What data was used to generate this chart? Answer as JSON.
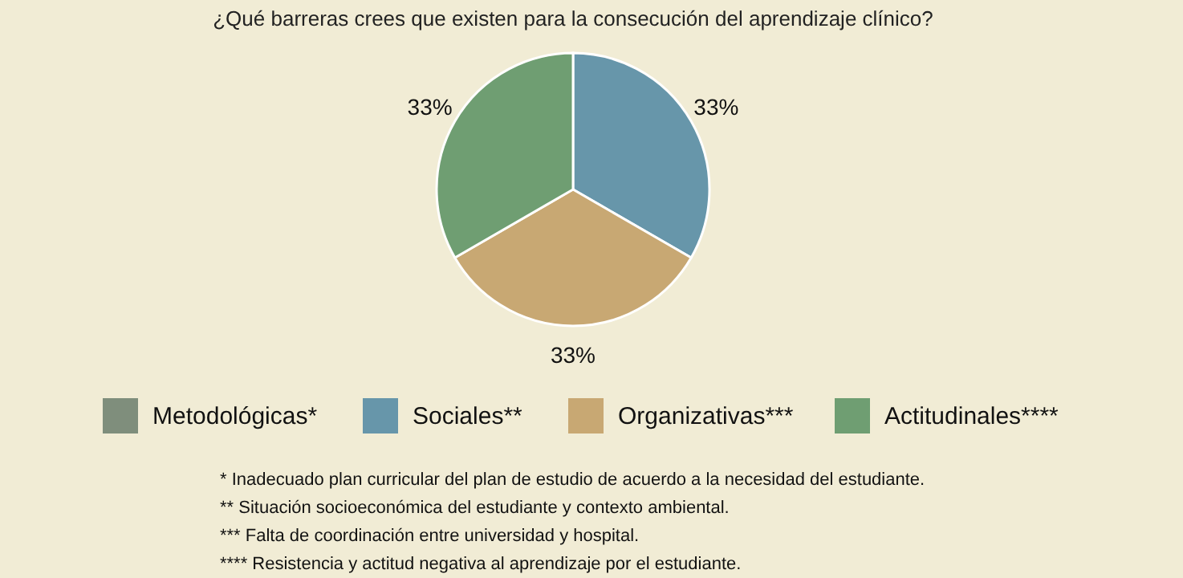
{
  "chart_data": {
    "type": "pie",
    "title": "¿Qué barreras crees que existen para la consecución del aprendizaje clínico?",
    "categories": [
      "Metodológicas*",
      "Sociales**",
      "Organizativas***",
      "Actitudinales****"
    ],
    "values": [
      0,
      33.33,
      33.33,
      33.33
    ],
    "value_labels": [
      null,
      "33%",
      "33%",
      "33%"
    ],
    "colors": [
      "#7f8e7c",
      "#6796aa",
      "#c8a873",
      "#6f9e72"
    ],
    "legend": "bottom",
    "annotations": [
      "* Inadecuado plan curricular del plan de estudio de acuerdo a la necesidad del estudiante.",
      "** Situación socioeconómica del estudiante y contexto ambiental.",
      "*** Falta de coordinación entre universidad y hospital.",
      "**** Resistencia y actitud negativa al aprendizaje por el estudiante."
    ]
  }
}
